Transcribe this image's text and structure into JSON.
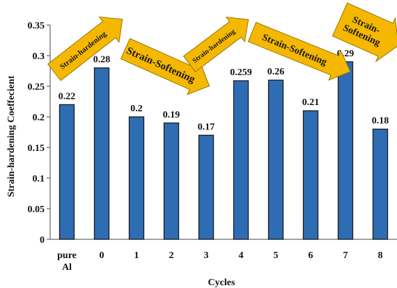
{
  "chart_data": {
    "type": "bar",
    "xlabel": "Cycles",
    "ylabel": "Strain-hardening Coeffecient",
    "ylim": [
      0,
      0.35
    ],
    "yticks": [
      "0",
      "0.05",
      "0.1",
      "0.15",
      "0.2",
      "0.25",
      "0.3",
      "0.35"
    ],
    "categories": [
      [
        "pure",
        "Al"
      ],
      "0",
      "1",
      "2",
      "3",
      "4",
      "5",
      "6",
      "7",
      "8"
    ],
    "values": [
      0.22,
      0.28,
      0.2,
      0.19,
      0.17,
      0.259,
      0.26,
      0.21,
      0.29,
      0.18
    ],
    "data_labels": [
      "0.22",
      "0.28",
      "0.2",
      "0.19",
      "0.17",
      "0.259",
      "0.26",
      "0.21",
      "0.29",
      "0.18"
    ],
    "bar_color": "#2e6db4",
    "bar_edge_color": "#1a1a1a",
    "grid": false,
    "annotations": [
      {
        "text": "Strain-hardening",
        "direction": "up",
        "color": "#f5b800"
      },
      {
        "text": "Strain-Softening",
        "direction": "down",
        "color": "#f5b800"
      },
      {
        "text": "Strain-hardening",
        "direction": "up",
        "color": "#f5b800"
      },
      {
        "text": "Strain-Softening",
        "direction": "down",
        "color": "#f5b800"
      },
      {
        "text": [
          "Strain-",
          "Softening"
        ],
        "direction": "down",
        "color": "#f5b800"
      }
    ]
  }
}
